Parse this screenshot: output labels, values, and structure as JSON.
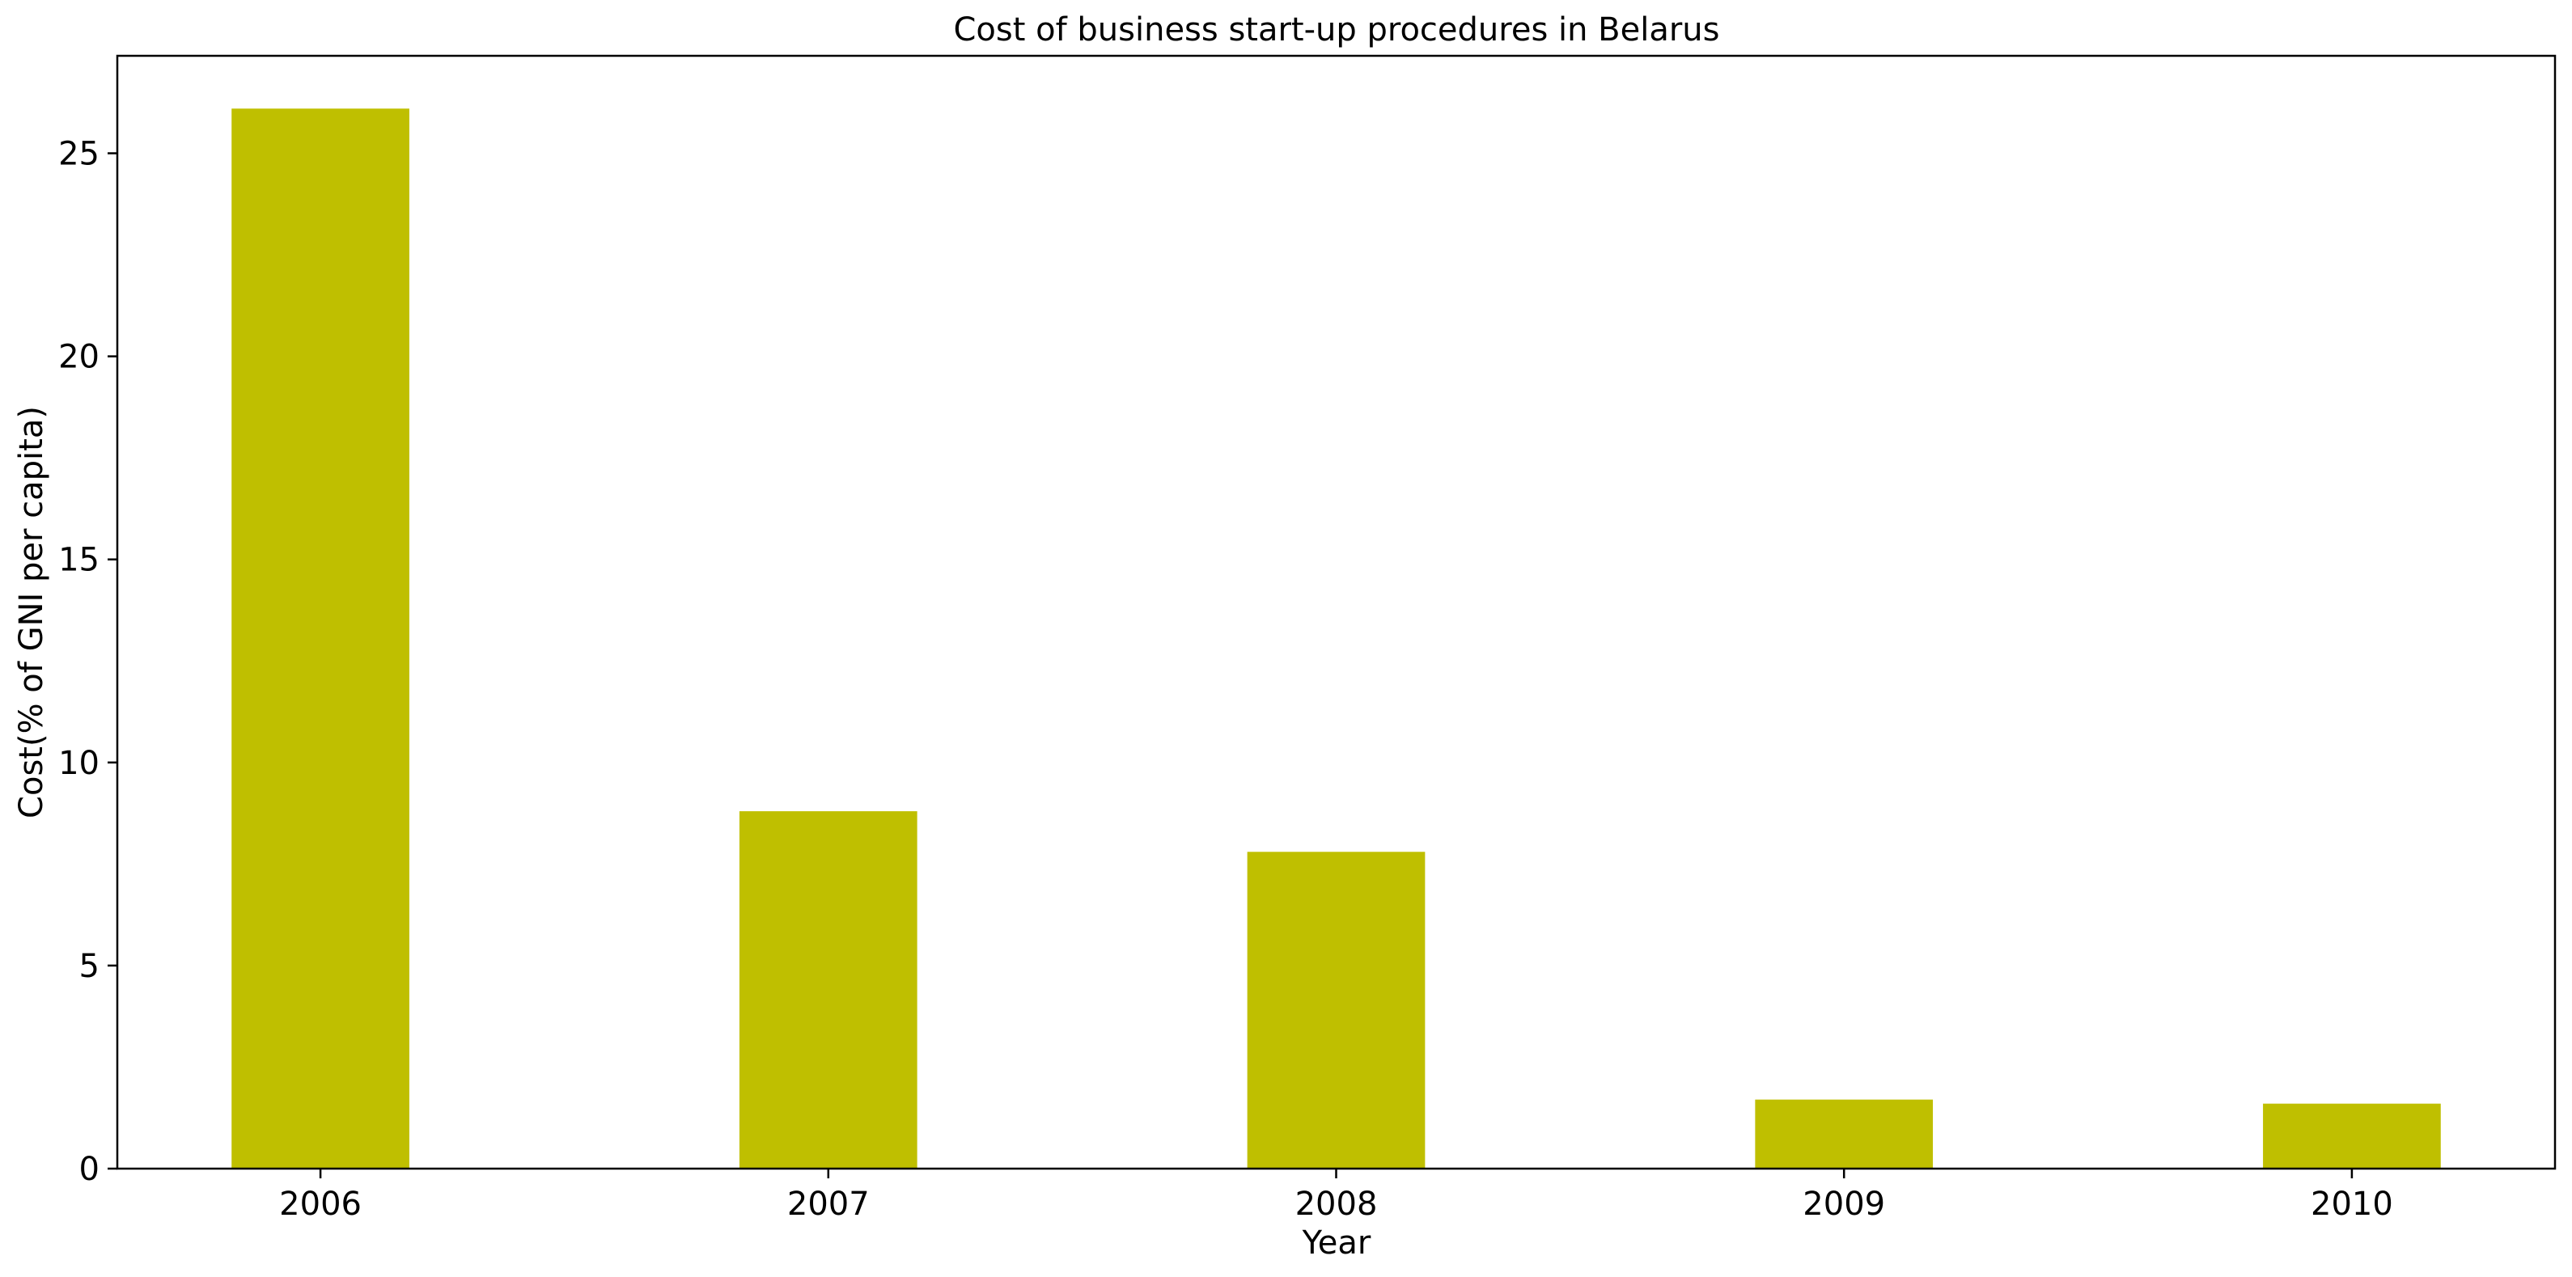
{
  "chart_data": {
    "type": "bar",
    "title": "Cost of business start-up procedures in Belarus",
    "xlabel": "Year",
    "ylabel": "Cost(% of GNI per capita)",
    "categories": [
      "2006",
      "2007",
      "2008",
      "2009",
      "2010"
    ],
    "values": [
      26.1,
      8.8,
      7.8,
      1.7,
      1.6
    ],
    "ylim": [
      0,
      27.4
    ],
    "yticks": [
      0,
      5,
      10,
      15,
      20,
      25
    ],
    "bar_color": "#bfbf00",
    "grid": false,
    "legend": "none"
  }
}
